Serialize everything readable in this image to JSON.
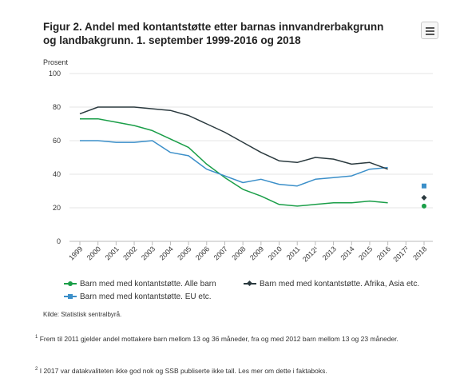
{
  "title": "Figur 2. Andel med kontantstøtte etter barnas innvandrerbakgrunn og landbakgrunn. 1. september 1999-2016 og 2018",
  "source": "Kilde: Statistisk sentralbyrå.",
  "footnotes": [
    {
      "mark": "1",
      "text": "Frem til 2011 gjelder andel mottakere barn mellom 13 og 36 måneder, fra og med 2012 barn mellom 13 og 23 måneder."
    },
    {
      "mark": "2",
      "text": "I 2017 var datakvaliteten ikke god nok og SSB publiserte ikke tall. Les mer om dette i faktaboks."
    }
  ],
  "menu": {
    "icon": "hamburger-menu-icon"
  },
  "chart_data": {
    "type": "line",
    "ylabel": "Prosent",
    "ylim": [
      0,
      100
    ],
    "yticks": [
      0,
      20,
      40,
      60,
      80,
      100
    ],
    "grid": true,
    "categories": [
      "1999",
      "2000",
      "2001",
      "2002",
      "2003",
      "2004",
      "2005",
      "2006",
      "2007",
      "2008",
      "2009",
      "2010",
      "2011",
      "2012¹",
      "2013",
      "2014",
      "2015",
      "2016",
      "2017²",
      "2018"
    ],
    "series": [
      {
        "name": "Barn med med kontantstøtte. Alle barn",
        "color": "#1a9e48",
        "marker": "circle",
        "values": [
          73,
          73,
          71,
          69,
          66,
          61,
          56,
          46,
          38,
          31,
          27,
          22,
          21,
          22,
          23,
          23,
          24,
          23,
          null,
          21
        ]
      },
      {
        "name": "Barn med med kontantstøtte. EU etc.",
        "color": "#3b8fc9",
        "marker": "square",
        "values": [
          60,
          60,
          59,
          59,
          60,
          53,
          51,
          43,
          39,
          35,
          37,
          34,
          33,
          37,
          38,
          39,
          43,
          44,
          null,
          33
        ]
      },
      {
        "name": "Barn med med kontantstøtte. Afrika, Asia etc.",
        "color": "#2b3a3f",
        "marker": "diamond",
        "values": [
          76,
          80,
          80,
          80,
          79,
          78,
          75,
          70,
          65,
          59,
          53,
          48,
          47,
          50,
          49,
          46,
          47,
          43,
          null,
          26
        ]
      }
    ],
    "legend_position": "bottom"
  }
}
